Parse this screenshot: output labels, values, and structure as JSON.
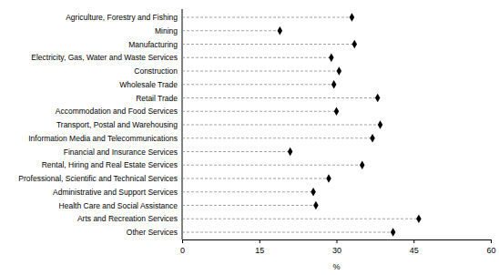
{
  "chart_data": {
    "type": "dot",
    "orientation": "horizontal",
    "categories": [
      "Agriculture, Forestry and Fishing",
      "Mining",
      "Manufacturing",
      "Electricity, Gas, Water and Waste Services",
      "Construction",
      "Wholesale Trade",
      "Retail Trade",
      "Accommodation and Food Services",
      "Transport, Postal and Warehousing",
      "Information Media and Telecommunications",
      "Financial and Insurance Services",
      "Rental, Hiring and Real Estate Services",
      "Professional, Scientific and Technical Services",
      "Administrative and Support Services",
      "Health Care and Social Assistance",
      "Arts and Recreation Services",
      "Other Services"
    ],
    "values": [
      33,
      19,
      33.5,
      29,
      30.5,
      29.5,
      38,
      30,
      38.5,
      37,
      21,
      35,
      28.5,
      25.5,
      26,
      46,
      41
    ],
    "color": "#000000",
    "marker": "diamond",
    "line_style": "dashed",
    "xlabel": "%",
    "xlim": [
      0,
      60
    ],
    "xticks": [
      0,
      15,
      30,
      45,
      60
    ]
  }
}
